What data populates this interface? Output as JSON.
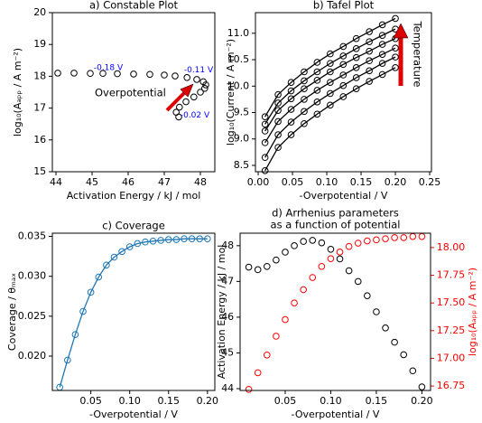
{
  "chart_data": [
    {
      "type": "scatter",
      "title": "a) Constable Plot",
      "xlabel": "Activation Energy / kJ / mol",
      "ylabel": "log₁₀(Aₐₚₚ / A m⁻²)",
      "x": [
        47.4,
        47.33,
        47.42,
        47.6,
        47.82,
        48.0,
        48.12,
        48.15,
        48.08,
        47.9,
        47.63,
        47.3,
        47.0,
        46.6,
        46.15,
        45.7,
        45.3,
        44.95,
        44.5,
        44.05
      ],
      "values": [
        16.72,
        16.87,
        17.03,
        17.2,
        17.35,
        17.5,
        17.62,
        17.73,
        17.83,
        17.9,
        17.96,
        18.01,
        18.04,
        18.06,
        18.07,
        18.08,
        18.09,
        18.09,
        18.1,
        18.1
      ],
      "color": "#000000",
      "xlim": [
        43.9,
        48.4
      ],
      "xticks": [
        44,
        45,
        46,
        47,
        48
      ],
      "ylim": [
        15,
        20
      ],
      "yticks": [
        15,
        16,
        17,
        18,
        19,
        20
      ],
      "annotations": [
        {
          "text": "-0.18 V",
          "color": "#0000ff"
        },
        {
          "text": "-0.11 V",
          "color": "#0000ff"
        },
        {
          "text": "-0.02 V",
          "color": "#0000ff"
        },
        {
          "text": "Overpotential",
          "color": "#000000"
        }
      ]
    },
    {
      "type": "line",
      "title": "b) Tafel Plot",
      "xlabel": "-Overpotential / V",
      "ylabel": "log₁₀(Current / A  m⁻²)",
      "x": [
        0.01,
        0.029,
        0.048,
        0.067,
        0.086,
        0.105,
        0.124,
        0.143,
        0.162,
        0.181,
        0.2
      ],
      "series": [
        {
          "color": "#000000",
          "values": [
            8.4,
            8.84,
            9.08,
            9.29,
            9.47,
            9.64,
            9.8,
            9.95,
            10.09,
            10.22,
            10.35
          ]
        },
        {
          "color": "#000000",
          "values": [
            8.65,
            9.08,
            9.32,
            9.52,
            9.7,
            9.86,
            10.01,
            10.16,
            10.29,
            10.43,
            10.55
          ]
        },
        {
          "color": "#000000",
          "values": [
            8.93,
            9.33,
            9.56,
            9.75,
            9.92,
            10.07,
            10.21,
            10.35,
            10.48,
            10.6,
            10.72
          ]
        },
        {
          "color": "#000000",
          "values": [
            9.15,
            9.54,
            9.76,
            9.95,
            10.11,
            10.27,
            10.41,
            10.54,
            10.66,
            10.79,
            10.9
          ]
        },
        {
          "color": "#000000",
          "values": [
            9.28,
            9.68,
            9.91,
            10.1,
            10.27,
            10.43,
            10.57,
            10.71,
            10.84,
            10.96,
            11.08
          ]
        },
        {
          "color": "#000000",
          "values": [
            9.42,
            9.84,
            10.07,
            10.27,
            10.45,
            10.61,
            10.75,
            10.9,
            11.03,
            11.16,
            11.28
          ]
        }
      ],
      "xlim": [
        -0.004,
        0.2526
      ],
      "xticks": [
        {
          "value": 0,
          "label": "0.00"
        },
        0.05,
        {
          "value": 0.1,
          "label": "0.10"
        },
        0.15,
        {
          "value": 0.2,
          "label": "0.20"
        },
        0.25
      ],
      "ylim": [
        8.38,
        11.39
      ],
      "yticks": [
        8.5,
        {
          "value": 9,
          "label": "9.0"
        },
        9.5,
        {
          "value": 10,
          "label": "10.0"
        },
        10.5,
        {
          "value": 11,
          "label": "11.0"
        }
      ],
      "annotations": [
        {
          "text": "Temperature",
          "color": "#000000"
        }
      ]
    },
    {
      "type": "line",
      "title": "c) Coverage",
      "xlabel": "-Overpotential / V",
      "ylabel": "Coverage / θₘₐₓ",
      "x": [
        0.01,
        0.02,
        0.03,
        0.04,
        0.05,
        0.06,
        0.07,
        0.08,
        0.09,
        0.1,
        0.11,
        0.12,
        0.13,
        0.14,
        0.15,
        0.16,
        0.17,
        0.18,
        0.19,
        0.2
      ],
      "values": [
        0.0161,
        0.0195,
        0.0227,
        0.0256,
        0.028,
        0.0299,
        0.0314,
        0.0324,
        0.0331,
        0.0337,
        0.0341,
        0.0343,
        0.0344,
        0.0345,
        0.0346,
        0.0346,
        0.0347,
        0.0347,
        0.0347,
        0.0347
      ],
      "color": "#1f77b4",
      "xlim": [
        0.0005,
        0.2095
      ],
      "xticks": [
        0.05,
        {
          "value": 0.1,
          "label": "0.10"
        },
        0.15,
        {
          "value": 0.2,
          "label": "0.20"
        }
      ],
      "ylim": [
        0.0157,
        0.0354
      ],
      "yticks": [
        {
          "value": 0.02,
          "label": "0.020"
        },
        0.025,
        {
          "value": 0.03,
          "label": "0.030"
        },
        0.035
      ]
    },
    {
      "type": "scatter",
      "title": [
        "d) Arrhenius parameters",
        "as a function of potential"
      ],
      "xlabel": "-Overpotential / V",
      "ylabel": "Activation Energy / kJ / mol",
      "y2label": "log₁₀(Aₐₚₚ / A m⁻²)",
      "x": [
        0.01,
        0.02,
        0.03,
        0.04,
        0.05,
        0.06,
        0.07,
        0.08,
        0.09,
        0.1,
        0.11,
        0.12,
        0.13,
        0.14,
        0.15,
        0.16,
        0.17,
        0.18,
        0.19,
        0.2
      ],
      "series": [
        {
          "color": "#000000",
          "values": [
            47.4,
            47.33,
            47.42,
            47.6,
            47.82,
            48.0,
            48.12,
            48.15,
            48.08,
            47.9,
            47.63,
            47.3,
            47.0,
            46.6,
            46.15,
            45.7,
            45.3,
            44.95,
            44.5,
            44.05
          ]
        },
        {
          "color": "#ff0000",
          "axis": "y2",
          "values": [
            16.72,
            16.87,
            17.03,
            17.2,
            17.35,
            17.5,
            17.62,
            17.73,
            17.83,
            17.9,
            17.96,
            18.01,
            18.04,
            18.06,
            18.07,
            18.08,
            18.09,
            18.09,
            18.1,
            18.1
          ]
        }
      ],
      "xlim": [
        0.0005,
        0.2095
      ],
      "xticks": [
        0.05,
        {
          "value": 0.1,
          "label": "0.10"
        },
        0.15,
        {
          "value": 0.2,
          "label": "0.20"
        }
      ],
      "ylim": [
        43.95,
        48.35
      ],
      "yticks": [
        44,
        45,
        46,
        47,
        48
      ],
      "y2lim": [
        16.71,
        18.13
      ],
      "y2ticks": [
        16.75,
        {
          "value": 17,
          "label": "17.00"
        },
        17.25,
        {
          "value": 17.5,
          "label": "17.50"
        },
        17.75,
        {
          "value": 18,
          "label": "18.00"
        }
      ]
    }
  ]
}
